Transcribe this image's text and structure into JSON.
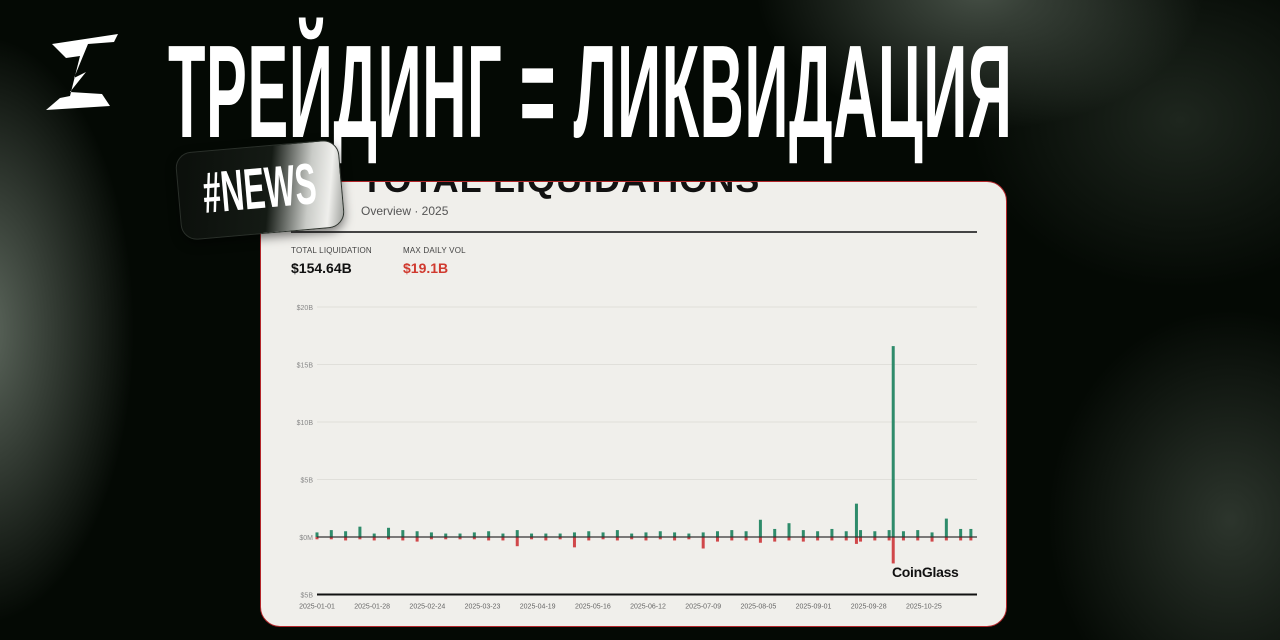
{
  "header": {
    "headline": "ТРЕЙДИНГ = ЛИКВИДАЦИЯ",
    "badge": "#NEWS",
    "logo": "brand-logo"
  },
  "card": {
    "title": "TOTAL LIQUIDATIONS",
    "subtitle": "Overview · 2025",
    "stats": [
      {
        "label": "TOTAL LIQUIDATION",
        "value": "$154.64B"
      },
      {
        "label": "MAX DAILY VOL",
        "value": "$19.1B",
        "color": "#d03a2f"
      }
    ],
    "watermark": "CoinGlass"
  },
  "chart_data": {
    "type": "bar",
    "title": "",
    "xlabel": "",
    "ylabel": "",
    "ylim": [
      -5,
      20
    ],
    "y_unit": "billion USD",
    "y_ticks": [
      {
        "v": 20,
        "label": "$20B"
      },
      {
        "v": 15,
        "label": "$15B"
      },
      {
        "v": 10,
        "label": "$10B"
      },
      {
        "v": 5,
        "label": "$5B"
      },
      {
        "v": 0,
        "label": "$0M"
      },
      {
        "v": -5,
        "label": "$5B"
      }
    ],
    "x_ticks": [
      "2025-01-01",
      "2025-01-28",
      "2025-02-24",
      "2025-03-23",
      "2025-04-19",
      "2025-05-16",
      "2025-06-12",
      "2025-07-09",
      "2025-08-05",
      "2025-09-01",
      "2025-09-28",
      "2025-10-25"
    ],
    "xlim": [
      "2025-01-01",
      "2025-11-20"
    ],
    "grid": true,
    "colors": {
      "up": "#2e8b6a",
      "down": "#d0474a"
    },
    "x": [
      "2025-01-01",
      "2025-01-08",
      "2025-01-15",
      "2025-01-22",
      "2025-01-29",
      "2025-02-05",
      "2025-02-12",
      "2025-02-19",
      "2025-02-26",
      "2025-03-05",
      "2025-03-12",
      "2025-03-19",
      "2025-03-26",
      "2025-04-02",
      "2025-04-09",
      "2025-04-16",
      "2025-04-23",
      "2025-04-30",
      "2025-05-07",
      "2025-05-14",
      "2025-05-21",
      "2025-05-28",
      "2025-06-04",
      "2025-06-11",
      "2025-06-18",
      "2025-06-25",
      "2025-07-02",
      "2025-07-09",
      "2025-07-16",
      "2025-07-23",
      "2025-07-30",
      "2025-08-06",
      "2025-08-13",
      "2025-08-20",
      "2025-08-27",
      "2025-09-03",
      "2025-09-10",
      "2025-09-17",
      "2025-09-22",
      "2025-09-24",
      "2025-10-01",
      "2025-10-08",
      "2025-10-10",
      "2025-10-15",
      "2025-10-22",
      "2025-10-29",
      "2025-11-05",
      "2025-11-12",
      "2025-11-17"
    ],
    "series": [
      {
        "values": [
          0.4,
          0.6,
          0.5,
          0.9,
          0.3,
          0.8,
          0.6,
          0.5,
          0.4,
          0.3,
          0.3,
          0.4,
          0.5,
          0.3,
          0.6,
          0.3,
          0.3,
          0.3,
          0.4,
          0.5,
          0.4,
          0.6,
          0.3,
          0.4,
          0.5,
          0.4,
          0.3,
          0.4,
          0.5,
          0.6,
          0.5,
          1.5,
          0.7,
          1.2,
          0.6,
          0.5,
          0.7,
          0.5,
          2.9,
          0.6,
          0.5,
          0.6,
          16.6,
          0.5,
          0.6,
          0.4,
          1.6,
          0.7,
          0.7
        ]
      },
      {
        "values": [
          -0.2,
          -0.2,
          -0.3,
          -0.2,
          -0.3,
          -0.2,
          -0.3,
          -0.4,
          -0.2,
          -0.2,
          -0.2,
          -0.2,
          -0.3,
          -0.3,
          -0.8,
          -0.2,
          -0.3,
          -0.2,
          -0.9,
          -0.3,
          -0.2,
          -0.3,
          -0.2,
          -0.3,
          -0.2,
          -0.3,
          -0.2,
          -1.0,
          -0.4,
          -0.3,
          -0.3,
          -0.5,
          -0.4,
          -0.3,
          -0.4,
          -0.3,
          -0.3,
          -0.3,
          -0.6,
          -0.4,
          -0.3,
          -0.3,
          -2.3,
          -0.3,
          -0.3,
          -0.4,
          -0.3,
          -0.3,
          -0.3
        ]
      }
    ]
  }
}
